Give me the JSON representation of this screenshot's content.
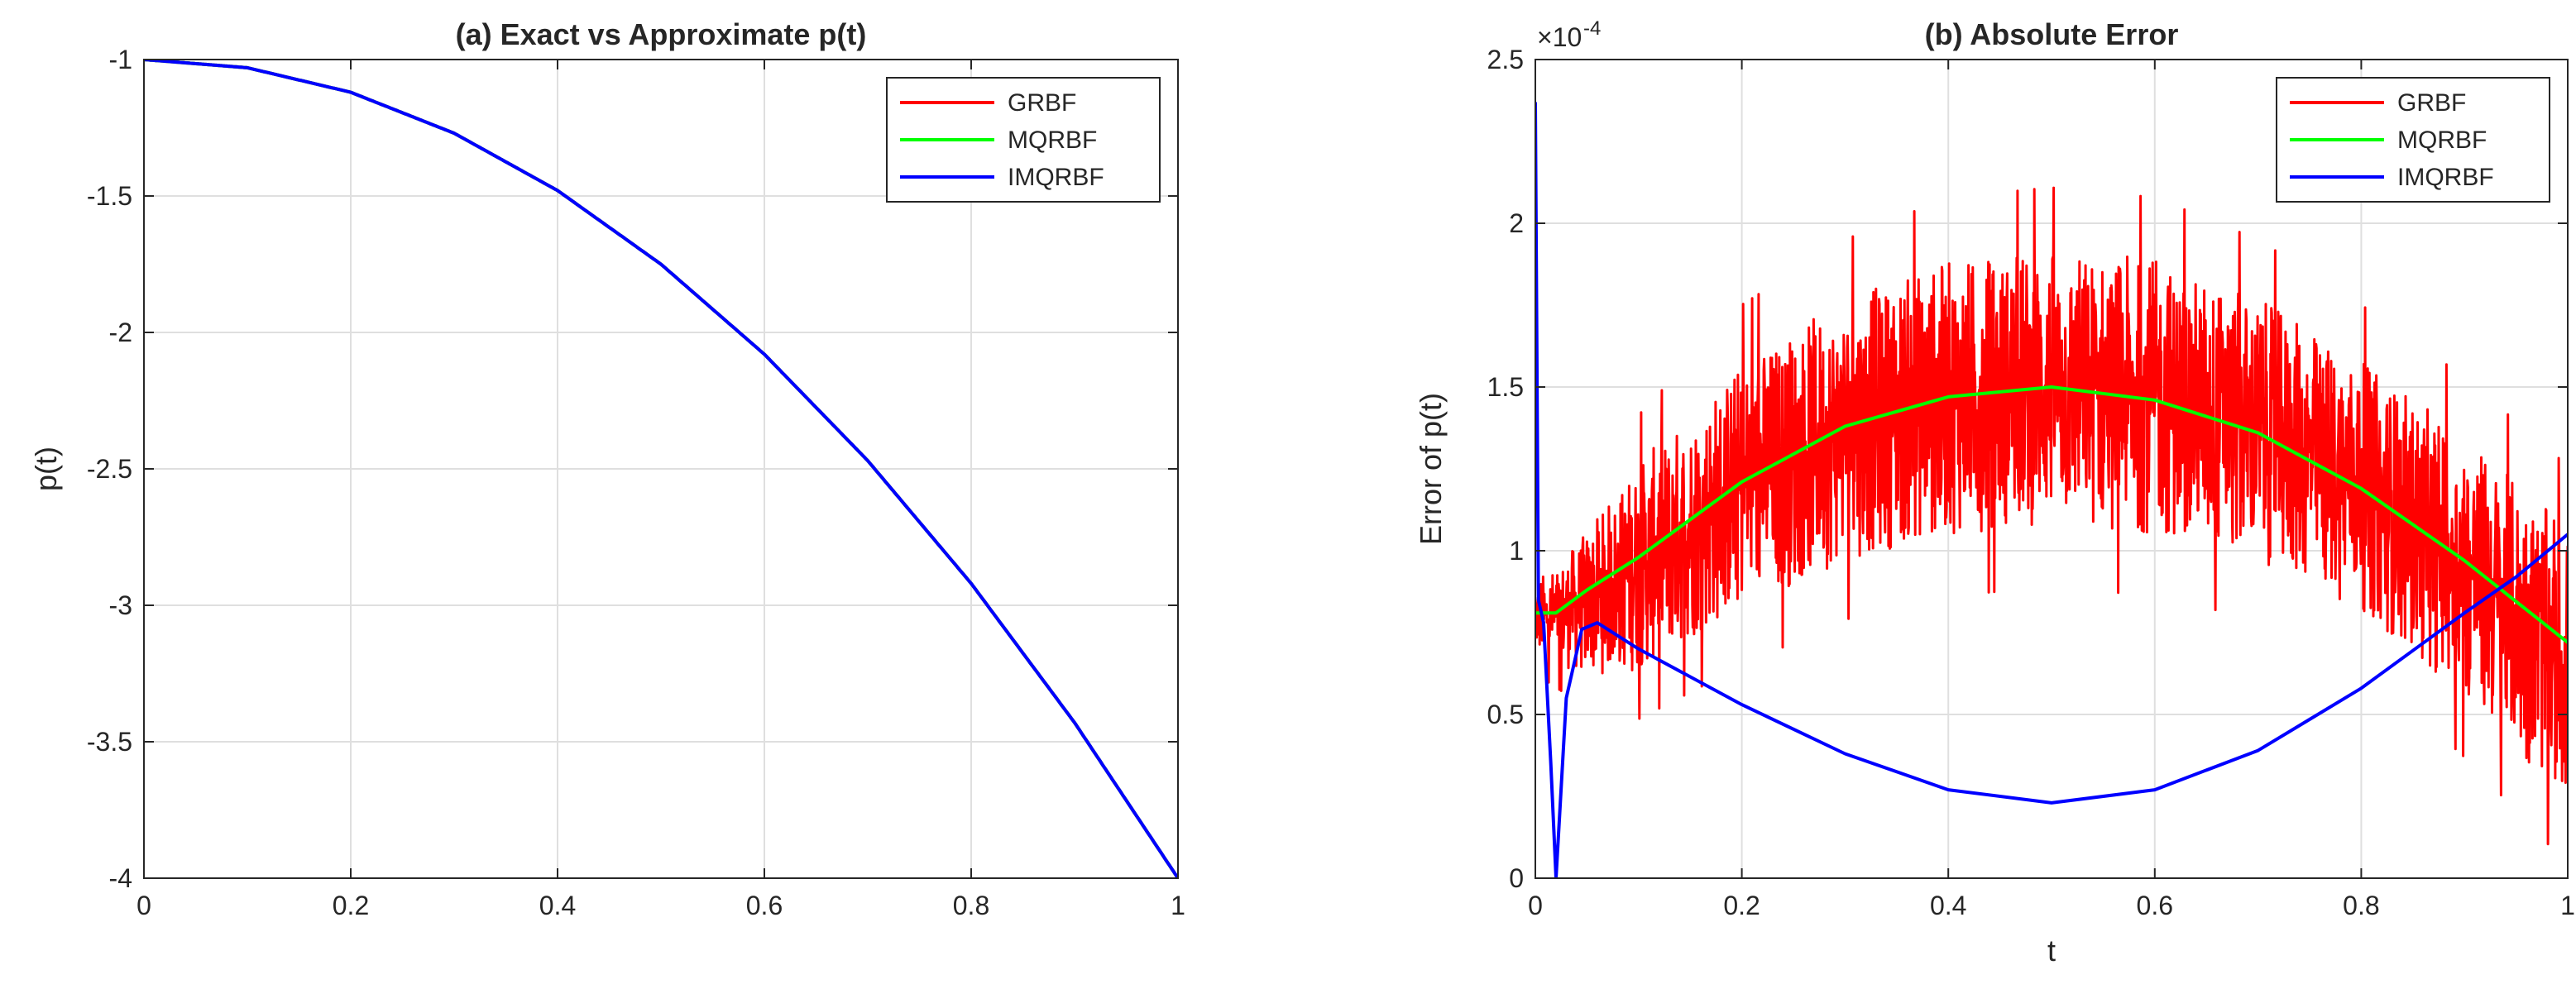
{
  "chart_data": [
    {
      "type": "line",
      "title": "(a) Exact vs Approximate p(t)",
      "xlabel": "",
      "ylabel": "p(t)",
      "xlim": [
        0,
        1
      ],
      "ylim": [
        -4,
        -1
      ],
      "xticks": [
        0,
        0.2,
        0.4,
        0.6,
        0.8,
        1
      ],
      "yticks": [
        -4,
        -3.5,
        -3,
        -2.5,
        -2,
        -1.5,
        -1
      ],
      "xtick_labels": [
        "0",
        "0.2",
        "0.4",
        "0.6",
        "0.8",
        "1"
      ],
      "ytick_labels": [
        "-4",
        "-3.5",
        "-3",
        "-2.5",
        "-2",
        "-1.5",
        "-1"
      ],
      "grid": true,
      "legend_position": "top-right",
      "series": [
        {
          "name": "GRBF",
          "color": "#ff0000",
          "x": [
            0,
            0.1,
            0.2,
            0.3,
            0.4,
            0.5,
            0.6,
            0.7,
            0.8,
            0.9,
            1.0
          ],
          "y": [
            -1.0,
            -1.03,
            -1.12,
            -1.27,
            -1.48,
            -1.75,
            -2.08,
            -2.47,
            -2.92,
            -3.43,
            -4.0
          ]
        },
        {
          "name": "MQRBF",
          "color": "#00ff00",
          "x": [
            0,
            0.1,
            0.2,
            0.3,
            0.4,
            0.5,
            0.6,
            0.7,
            0.8,
            0.9,
            1.0
          ],
          "y": [
            -1.0,
            -1.03,
            -1.12,
            -1.27,
            -1.48,
            -1.75,
            -2.08,
            -2.47,
            -2.92,
            -3.43,
            -4.0
          ]
        },
        {
          "name": "IMQRBF",
          "color": "#0000ff",
          "x": [
            0,
            0.1,
            0.2,
            0.3,
            0.4,
            0.5,
            0.6,
            0.7,
            0.8,
            0.9,
            1.0
          ],
          "y": [
            -1.0,
            -1.03,
            -1.12,
            -1.27,
            -1.48,
            -1.75,
            -2.08,
            -2.47,
            -2.92,
            -3.43,
            -4.0
          ]
        }
      ]
    },
    {
      "type": "line",
      "title": "(b) Absolute Error",
      "xlabel": "t",
      "ylabel": "Error of p(t)",
      "exponent_label": "× 10^-4",
      "exponent_base": "×10",
      "exponent_power": "-4",
      "y_scale_note": "y values in units of 1e-4",
      "xlim": [
        0,
        1
      ],
      "ylim": [
        0,
        2.5
      ],
      "xticks": [
        0,
        0.2,
        0.4,
        0.6,
        0.8,
        1
      ],
      "yticks": [
        0,
        0.5,
        1,
        1.5,
        2,
        2.5
      ],
      "xtick_labels": [
        "0",
        "0.2",
        "0.4",
        "0.6",
        "0.8",
        "1"
      ],
      "ytick_labels": [
        "0",
        "0.5",
        "1",
        "1.5",
        "2",
        "2.5"
      ],
      "grid": true,
      "legend_position": "top-right",
      "series": [
        {
          "name": "GRBF",
          "color": "#ff0000",
          "style": "noisy",
          "x": [
            0,
            0.02,
            0.05,
            0.1,
            0.2,
            0.3,
            0.4,
            0.5,
            0.6,
            0.7,
            0.8,
            0.9,
            1.0
          ],
          "y": [
            0.8,
            0.8,
            0.84,
            0.95,
            1.2,
            1.37,
            1.47,
            1.5,
            1.47,
            1.37,
            1.2,
            0.95,
            0.65
          ],
          "noise_amplitude": [
            0.12,
            0.15,
            0.22,
            0.32,
            0.38,
            0.4,
            0.42,
            0.42,
            0.42,
            0.4,
            0.38,
            0.4,
            0.42
          ]
        },
        {
          "name": "MQRBF",
          "color": "#00ff00",
          "x": [
            0,
            0.02,
            0.05,
            0.1,
            0.2,
            0.3,
            0.4,
            0.5,
            0.6,
            0.7,
            0.8,
            0.9,
            1.0
          ],
          "y": [
            0.81,
            0.81,
            0.88,
            0.98,
            1.21,
            1.38,
            1.47,
            1.5,
            1.46,
            1.36,
            1.19,
            0.97,
            0.72
          ]
        },
        {
          "name": "IMQRBF",
          "color": "#0000ff",
          "x": [
            0,
            0.003,
            0.008,
            0.015,
            0.02,
            0.03,
            0.045,
            0.06,
            0.1,
            0.2,
            0.3,
            0.4,
            0.5,
            0.6,
            0.7,
            0.8,
            0.9,
            0.95,
            1.0
          ],
          "y": [
            2.37,
            0.85,
            0.78,
            0.35,
            0.0,
            0.55,
            0.76,
            0.78,
            0.7,
            0.53,
            0.38,
            0.27,
            0.23,
            0.27,
            0.39,
            0.58,
            0.81,
            0.92,
            1.05
          ]
        }
      ]
    }
  ]
}
